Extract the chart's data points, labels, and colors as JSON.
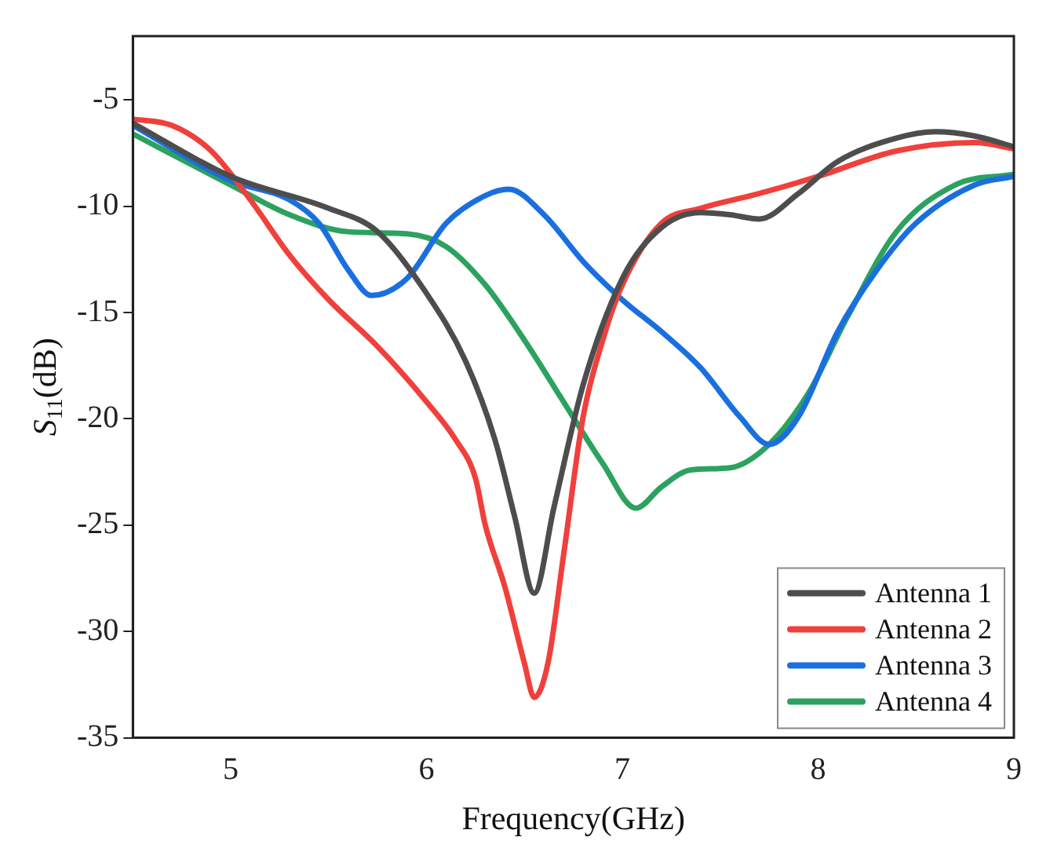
{
  "chart_data": {
    "type": "line",
    "xlabel": "Frequency(GHz)",
    "ylabel": "S$_{11}$(dB)",
    "xlim": [
      4.5,
      9
    ],
    "xticks": [
      5,
      6,
      7,
      8,
      9
    ],
    "ylim": [
      -35,
      -2
    ],
    "yticks": [
      -35,
      -30,
      -25,
      -20,
      -15,
      -10,
      -5
    ],
    "legend": "bottom right",
    "grid": false,
    "marker": "none",
    "line_style": "solid",
    "series": [
      {
        "name": "Antenna 1",
        "color": "#4d4d4d",
        "x": [
          4.5,
          5.0,
          5.5,
          5.75,
          6.0,
          6.2,
          6.35,
          6.45,
          6.55,
          6.65,
          6.8,
          7.0,
          7.2,
          7.4,
          7.55,
          7.7,
          7.9,
          8.1,
          8.4,
          8.6,
          8.8,
          9.0
        ],
        "values": [
          -6.1,
          -8.6,
          -10.1,
          -11.2,
          -14.1,
          -17.3,
          -21,
          -24.6,
          -28.2,
          -24.2,
          -18.4,
          -13.4,
          -11,
          -10.3,
          -10.4,
          -10.6,
          -9.4,
          -7.9,
          -6.8,
          -6.5,
          -6.7,
          -7.2
        ]
      },
      {
        "name": "Antenna 2",
        "color": "#f0403c",
        "x": [
          4.5,
          4.7,
          4.9,
          5.1,
          5.3,
          5.5,
          5.75,
          6.0,
          6.15,
          6.25,
          6.3,
          6.4,
          6.5,
          6.55,
          6.62,
          6.7,
          6.8,
          6.9,
          7.0,
          7.2,
          7.4,
          7.7,
          8.0,
          8.4,
          8.8,
          9.0
        ],
        "values": [
          -5.9,
          -6.2,
          -7.4,
          -9.7,
          -12.3,
          -14.4,
          -16.6,
          -19.2,
          -21,
          -22.8,
          -25,
          -27.9,
          -31.5,
          -33.1,
          -31.5,
          -26.4,
          -19.9,
          -16.3,
          -13.7,
          -10.8,
          -10.1,
          -9.4,
          -8.6,
          -7.4,
          -7,
          -7.3
        ]
      },
      {
        "name": "Antenna 3",
        "color": "#1a6fdf",
        "x": [
          4.5,
          5.0,
          5.3,
          5.45,
          5.6,
          5.72,
          5.9,
          6.1,
          6.3,
          6.42,
          6.6,
          6.8,
          7.0,
          7.2,
          7.4,
          7.6,
          7.75,
          7.9,
          8.1,
          8.3,
          8.5,
          8.8,
          9.0
        ],
        "values": [
          -6.2,
          -8.8,
          -9.7,
          -10.8,
          -13,
          -14.2,
          -13.4,
          -10.8,
          -9.5,
          -9.2,
          -10.4,
          -12.6,
          -14.4,
          -15.9,
          -17.6,
          -19.9,
          -21.2,
          -19.9,
          -15.9,
          -13,
          -10.8,
          -9,
          -8.6
        ]
      },
      {
        "name": "Antenna 4",
        "color": "#2ca25f",
        "x": [
          4.5,
          5.0,
          5.3,
          5.6,
          5.9,
          6.1,
          6.3,
          6.5,
          6.7,
          6.9,
          7.07,
          7.2,
          7.35,
          7.55,
          7.75,
          7.95,
          8.15,
          8.4,
          8.7,
          9.0
        ],
        "values": [
          -6.6,
          -9,
          -10.4,
          -11.2,
          -11.3,
          -11.9,
          -13.7,
          -16.3,
          -19.2,
          -22.1,
          -24.2,
          -23.2,
          -22.4,
          -22.3,
          -21.2,
          -18.8,
          -15.2,
          -11.2,
          -9,
          -8.5
        ]
      }
    ]
  }
}
